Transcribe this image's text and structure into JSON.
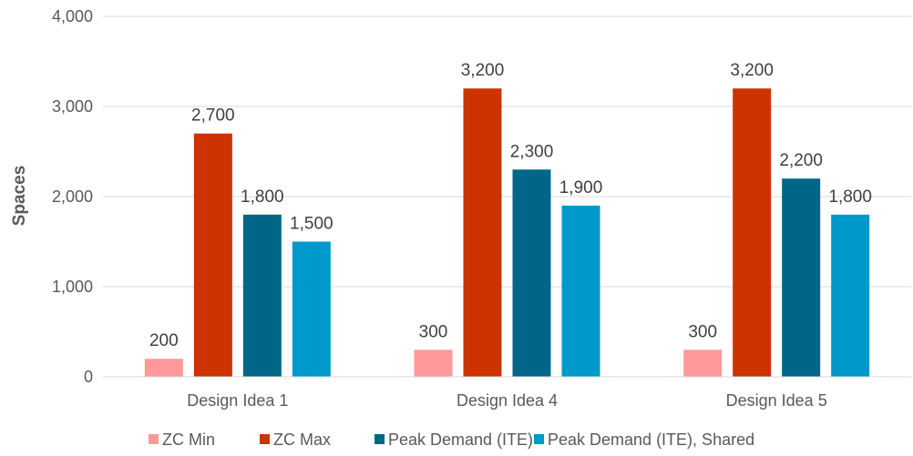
{
  "chart_data": {
    "type": "bar",
    "title": "",
    "xlabel": "",
    "ylabel": "Spaces",
    "ylim": [
      0,
      4000
    ],
    "yticks": [
      0,
      1000,
      2000,
      3000,
      4000
    ],
    "ytick_labels": [
      "0",
      "1,000",
      "2,000",
      "3,000",
      "4,000"
    ],
    "grid": "horizontal",
    "legend_position": "bottom",
    "categories": [
      "Design Idea 1",
      "Design Idea 4",
      "Design Idea 5"
    ],
    "series": [
      {
        "name": "ZC Min",
        "color": "#FF9999",
        "values": [
          200,
          300,
          300
        ],
        "labels": [
          "200",
          "300",
          "300"
        ]
      },
      {
        "name": "ZC Max",
        "color": "#CC3300",
        "values": [
          2700,
          3200,
          3200
        ],
        "labels": [
          "2,700",
          "3,200",
          "3,200"
        ]
      },
      {
        "name": "Peak Demand (ITE)",
        "color": "#006687",
        "values": [
          1800,
          2300,
          2200
        ],
        "labels": [
          "1,800",
          "2,300",
          "2,200"
        ]
      },
      {
        "name": "Peak Demand (ITE), Shared",
        "color": "#0099CC",
        "values": [
          1500,
          1900,
          1800
        ],
        "labels": [
          "1,500",
          "1,900",
          "1,800"
        ]
      }
    ]
  }
}
